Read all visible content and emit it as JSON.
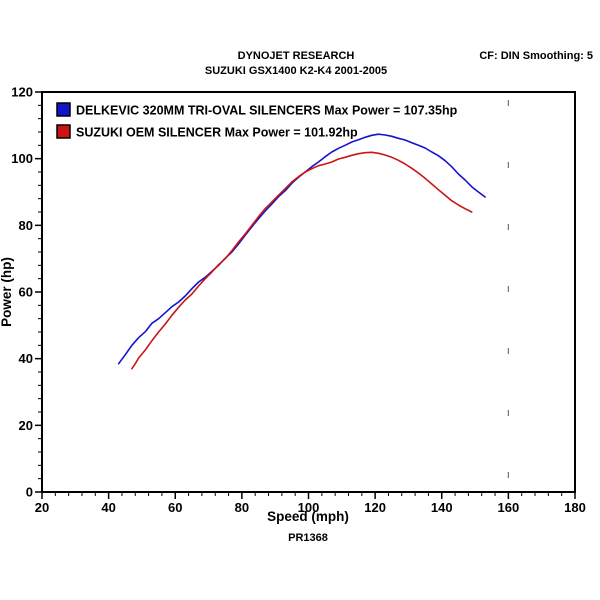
{
  "chart_data": {
    "type": "line",
    "title": "DYNOJET RESEARCH",
    "subtitle": "SUZUKI GSX1400 K2-K4 2001-2005",
    "corner_note": "CF: DIN  Smoothing: 5",
    "xlabel": "Speed (mph)",
    "ylabel": "Power (hp)",
    "footer": "PR1368",
    "xlim": [
      20,
      180
    ],
    "ylim": [
      0,
      120
    ],
    "x_ticks": [
      20,
      40,
      60,
      80,
      100,
      120,
      140,
      160,
      180
    ],
    "y_ticks": [
      0,
      20,
      40,
      60,
      80,
      100,
      120
    ],
    "x_minor_step": 4,
    "y_minor_step": 4,
    "grid": false,
    "legend_position": "top-left",
    "marker_line_x": 160,
    "frame_color": "#000000",
    "series": [
      {
        "name": "DELKEVIC 320MM TRI-OVAL SILENCERS  Max Power = 107.35hp",
        "max_power_hp": 107.35,
        "color": "#1414cc",
        "points": [
          [
            43,
            38.5
          ],
          [
            45,
            41.2
          ],
          [
            47,
            44
          ],
          [
            49,
            46.3
          ],
          [
            51,
            48.1
          ],
          [
            53,
            50.6
          ],
          [
            55,
            52
          ],
          [
            57,
            53.8
          ],
          [
            59,
            55.6
          ],
          [
            61,
            57
          ],
          [
            63,
            58.8
          ],
          [
            65,
            61
          ],
          [
            67,
            63
          ],
          [
            69,
            64.4
          ],
          [
            71,
            66.2
          ],
          [
            73,
            68
          ],
          [
            75,
            70.1
          ],
          [
            77,
            72
          ],
          [
            79,
            74.4
          ],
          [
            81,
            77
          ],
          [
            83,
            79.6
          ],
          [
            85,
            82
          ],
          [
            87,
            84.3
          ],
          [
            89,
            86.4
          ],
          [
            91,
            88.6
          ],
          [
            93,
            90.4
          ],
          [
            95,
            92.6
          ],
          [
            97,
            94.4
          ],
          [
            99,
            96
          ],
          [
            101,
            97.6
          ],
          [
            103,
            99
          ],
          [
            105,
            100.6
          ],
          [
            107,
            102
          ],
          [
            109,
            103.1
          ],
          [
            111,
            104
          ],
          [
            113,
            105
          ],
          [
            115,
            105.7
          ],
          [
            117,
            106.4
          ],
          [
            119,
            107
          ],
          [
            121,
            107.35
          ],
          [
            123,
            107.1
          ],
          [
            125,
            106.7
          ],
          [
            127,
            106.1
          ],
          [
            129,
            105.6
          ],
          [
            131,
            104.8
          ],
          [
            133,
            104
          ],
          [
            135,
            103.2
          ],
          [
            137,
            102
          ],
          [
            139,
            100.9
          ],
          [
            141,
            99.4
          ],
          [
            143,
            97.6
          ],
          [
            145,
            95.4
          ],
          [
            147,
            93.6
          ],
          [
            149,
            91.6
          ],
          [
            151,
            90
          ],
          [
            153,
            88.5
          ]
        ]
      },
      {
        "name": "SUZUKI OEM SILENCER Max Power = 101.92hp",
        "max_power_hp": 101.92,
        "color": "#cc1414",
        "points": [
          [
            47,
            37
          ],
          [
            48,
            38.5
          ],
          [
            49,
            40.2
          ],
          [
            51,
            42.6
          ],
          [
            53,
            45.4
          ],
          [
            55,
            48
          ],
          [
            57,
            50.4
          ],
          [
            59,
            53
          ],
          [
            61,
            55.4
          ],
          [
            63,
            57.6
          ],
          [
            65,
            59.4
          ],
          [
            67,
            61.8
          ],
          [
            69,
            64
          ],
          [
            71,
            66
          ],
          [
            73,
            68.2
          ],
          [
            75,
            70
          ],
          [
            77,
            72.4
          ],
          [
            79,
            75
          ],
          [
            81,
            77.4
          ],
          [
            83,
            80
          ],
          [
            85,
            82.6
          ],
          [
            87,
            85
          ],
          [
            89,
            87
          ],
          [
            91,
            89
          ],
          [
            93,
            91
          ],
          [
            95,
            93
          ],
          [
            97,
            94.6
          ],
          [
            99,
            96
          ],
          [
            101,
            97
          ],
          [
            103,
            97.9
          ],
          [
            105,
            98.4
          ],
          [
            107,
            99
          ],
          [
            109,
            99.9
          ],
          [
            111,
            100.4
          ],
          [
            113,
            101
          ],
          [
            115,
            101.5
          ],
          [
            117,
            101.8
          ],
          [
            119,
            101.92
          ],
          [
            121,
            101.6
          ],
          [
            123,
            101.1
          ],
          [
            125,
            100.4
          ],
          [
            127,
            99.5
          ],
          [
            129,
            98.4
          ],
          [
            131,
            97.1
          ],
          [
            133,
            95.7
          ],
          [
            135,
            94.1
          ],
          [
            137,
            92.4
          ],
          [
            139,
            90.7
          ],
          [
            141,
            89
          ],
          [
            143,
            87.4
          ],
          [
            145,
            86.1
          ],
          [
            147,
            85
          ],
          [
            149,
            84
          ]
        ]
      }
    ]
  }
}
